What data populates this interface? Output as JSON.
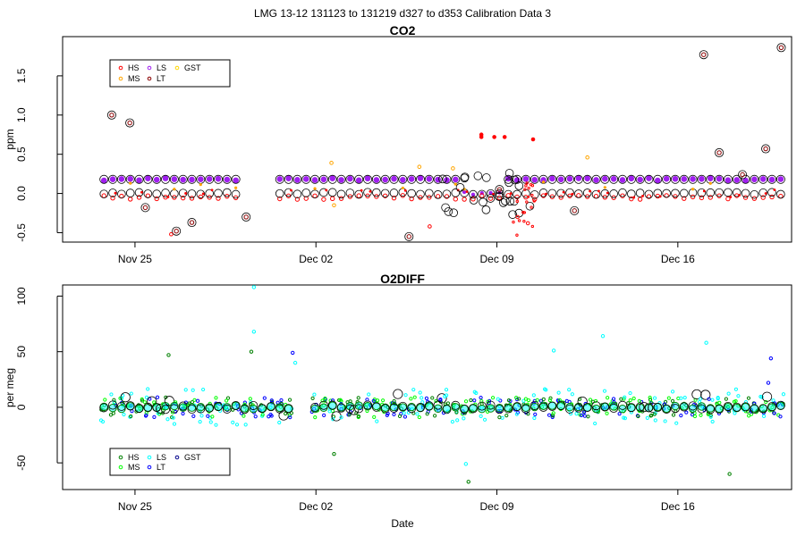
{
  "page_title": "LMG   13-12    131123 to 131219    d327 to d353   Calibration Data 3",
  "xlabel": "Date",
  "x_ticks": [
    {
      "day": 329,
      "label": "Nov 25"
    },
    {
      "day": 336,
      "label": "Dec 02"
    },
    {
      "day": 343,
      "label": "Dec 09"
    },
    {
      "day": 350,
      "label": "Dec 16"
    }
  ],
  "colors": {
    "HS": "#ff0000",
    "MS": "#ffa500",
    "LS": "#a020f0",
    "LT": "#8b0000",
    "GST": "#ffd700",
    "ring": "#000000"
  },
  "chart_data": [
    {
      "type": "scatter",
      "title": "CO2",
      "ylabel": "ppm",
      "xlim": [
        326.2,
        354.4
      ],
      "ylim": [
        -0.62,
        2.0
      ],
      "y_ticks": [
        {
          "v": -0.5,
          "label": "-0.5"
        },
        {
          "v": 0,
          "label": "0.0"
        },
        {
          "v": 0.5,
          "label": "0.5"
        },
        {
          "v": 1.0,
          "label": "1.0"
        },
        {
          "v": 1.5,
          "label": "1.5"
        }
      ],
      "legend": {
        "position": "top-left",
        "entries": [
          {
            "label": "HS",
            "color": "#ff0000"
          },
          {
            "label": "MS",
            "color": "#ffa500"
          },
          {
            "label": "LS",
            "color": "#a020f0"
          },
          {
            "label": "LT",
            "color": "#8b0000"
          },
          {
            "label": "GST",
            "color": "#ffd700"
          }
        ]
      },
      "baseline_series": [
        {
          "name": "LS mean",
          "color": "#a020f0",
          "y": 0.18
        },
        {
          "name": "HS mean",
          "color": "#ff0000",
          "y": -0.05
        },
        {
          "name": "MS mean",
          "color": "#ffa500",
          "y": 0.0
        }
      ],
      "outliers": [
        {
          "x": 328.1,
          "y": 1.0,
          "series": "LT"
        },
        {
          "x": 328.8,
          "y": 0.9,
          "series": "LT"
        },
        {
          "x": 329.4,
          "y": -0.18,
          "series": "LT"
        },
        {
          "x": 330.6,
          "y": -0.48,
          "series": "LT"
        },
        {
          "x": 331.2,
          "y": -0.37,
          "series": "LT"
        },
        {
          "x": 333.3,
          "y": -0.3,
          "series": "LT"
        },
        {
          "x": 339.6,
          "y": -0.55,
          "series": "LT"
        },
        {
          "x": 343.1,
          "y": 0.05,
          "series": "LT"
        },
        {
          "x": 346.0,
          "y": -0.22,
          "series": "LT"
        },
        {
          "x": 351.0,
          "y": 1.77,
          "series": "LT"
        },
        {
          "x": 351.6,
          "y": 0.52,
          "series": "LT"
        },
        {
          "x": 353.4,
          "y": 0.57,
          "series": "LT"
        },
        {
          "x": 354.0,
          "y": 1.86,
          "series": "LT"
        },
        {
          "x": 352.5,
          "y": 0.24,
          "series": "LT"
        },
        {
          "x": 342.4,
          "y": 0.75,
          "series": "HS"
        },
        {
          "x": 342.4,
          "y": 0.72,
          "series": "HS"
        },
        {
          "x": 342.9,
          "y": 0.72,
          "series": "HS"
        },
        {
          "x": 343.3,
          "y": 0.72,
          "series": "HS"
        },
        {
          "x": 344.4,
          "y": 0.69,
          "series": "HS"
        },
        {
          "x": 343.8,
          "y": -0.3,
          "series": "HS"
        },
        {
          "x": 344.2,
          "y": -0.38,
          "series": "HS"
        },
        {
          "x": 336.6,
          "y": 0.39,
          "series": "MS"
        },
        {
          "x": 340.0,
          "y": 0.34,
          "series": "MS"
        },
        {
          "x": 341.3,
          "y": 0.32,
          "series": "MS"
        },
        {
          "x": 346.5,
          "y": 0.46,
          "series": "MS"
        },
        {
          "x": 336.7,
          "y": -0.15,
          "series": "MS"
        },
        {
          "x": 330.4,
          "y": -0.52,
          "series": "HS"
        },
        {
          "x": 340.4,
          "y": -0.42,
          "series": "HS"
        }
      ]
    },
    {
      "type": "scatter",
      "title": "O2DIFF",
      "ylabel": "per meg",
      "xlim": [
        326.2,
        354.4
      ],
      "ylim": [
        -74,
        110
      ],
      "y_ticks": [
        {
          "v": -50,
          "label": "-50"
        },
        {
          "v": 0,
          "label": "0"
        },
        {
          "v": 50,
          "label": "50"
        },
        {
          "v": 100,
          "label": "100"
        }
      ],
      "legend": {
        "position": "bottom-left",
        "entries": [
          {
            "label": "HS",
            "color": "#008000"
          },
          {
            "label": "MS",
            "color": "#00ff00"
          },
          {
            "label": "LS",
            "color": "#00ffff"
          },
          {
            "label": "LT",
            "color": "#0000ff"
          },
          {
            "label": "GST",
            "color": "#00008b"
          }
        ]
      },
      "outliers": [
        {
          "x": 330.3,
          "y": 47,
          "series": "HS"
        },
        {
          "x": 333.6,
          "y": 108,
          "series": "LS"
        },
        {
          "x": 333.6,
          "y": 68,
          "series": "LS"
        },
        {
          "x": 341.9,
          "y": -67,
          "series": "HS"
        },
        {
          "x": 341.8,
          "y": -51,
          "series": "LS"
        },
        {
          "x": 345.2,
          "y": 51,
          "series": "LS"
        },
        {
          "x": 347.1,
          "y": 64,
          "series": "LS"
        },
        {
          "x": 351.1,
          "y": 58,
          "series": "LS"
        },
        {
          "x": 352.0,
          "y": -60,
          "series": "HS"
        },
        {
          "x": 336.7,
          "y": -42,
          "series": "HS"
        },
        {
          "x": 335.2,
          "y": 40,
          "series": "LS"
        },
        {
          "x": 335.1,
          "y": 49,
          "series": "LT"
        },
        {
          "x": 353.6,
          "y": 44,
          "series": "LT"
        },
        {
          "x": 333.5,
          "y": 50,
          "series": "HS"
        },
        {
          "x": 353.5,
          "y": 22,
          "series": "LT"
        }
      ]
    }
  ]
}
